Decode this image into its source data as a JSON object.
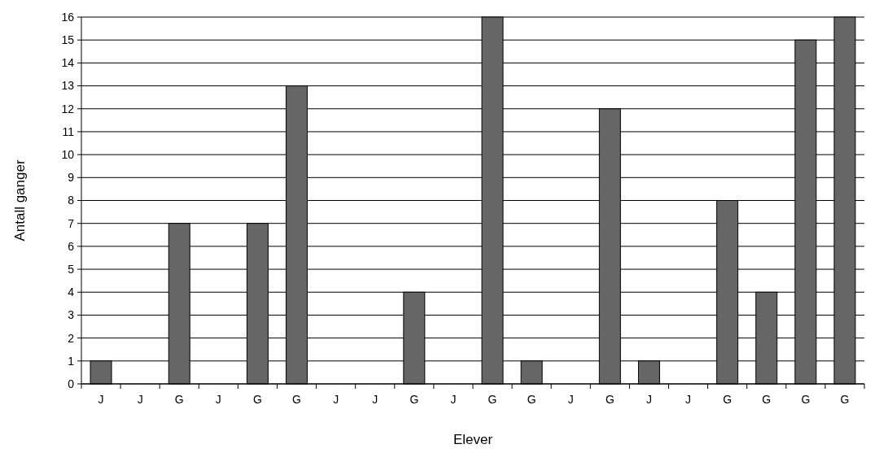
{
  "chart_data": {
    "type": "bar",
    "xlabel": "Elever",
    "ylabel": "Antall ganger",
    "categories": [
      "J",
      "J",
      "G",
      "J",
      "G",
      "G",
      "J",
      "J",
      "G",
      "J",
      "G",
      "G",
      "J",
      "G",
      "J",
      "J",
      "G",
      "G",
      "G",
      "G"
    ],
    "values": [
      1,
      0,
      7,
      0,
      7,
      13,
      0,
      0,
      4,
      0,
      16,
      1,
      0,
      12,
      1,
      0,
      8,
      4,
      15,
      16
    ],
    "color": "#666666",
    "ylim": [
      0,
      16
    ],
    "yticks": [
      0,
      1,
      2,
      3,
      4,
      5,
      6,
      7,
      8,
      9,
      10,
      11,
      12,
      13,
      14,
      15,
      16
    ],
    "grid": "y"
  }
}
